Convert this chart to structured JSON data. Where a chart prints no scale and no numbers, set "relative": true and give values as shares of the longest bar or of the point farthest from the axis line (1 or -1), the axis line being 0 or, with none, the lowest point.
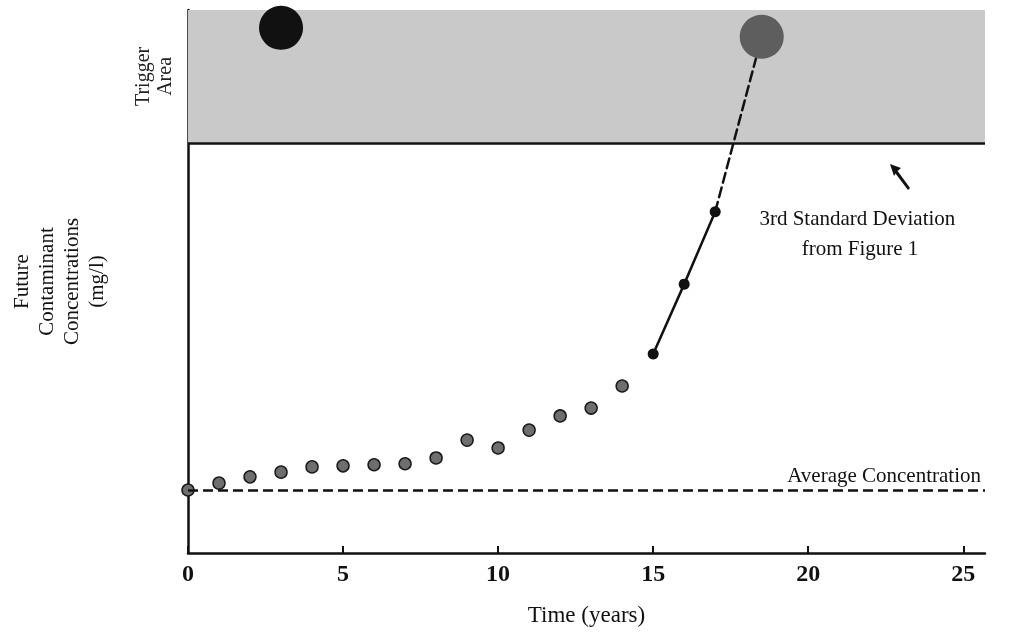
{
  "chart_data": {
    "type": "scatter",
    "xlabel": "Time (years)",
    "ylabel": "Future Contaminant Concentrations (mg/l)",
    "relative": true,
    "xlim": [
      0,
      25.7
    ],
    "xticks": [
      0,
      5,
      10,
      15,
      20,
      25
    ],
    "marker": "circle",
    "series": [
      {
        "color": "#6e6e6e",
        "x": [
          0,
          1,
          2,
          3,
          4,
          5,
          6,
          7,
          8,
          9,
          10,
          11,
          12,
          13,
          14
        ],
        "values": [
          0.12,
          0.133,
          0.145,
          0.154,
          0.164,
          0.166,
          0.168,
          0.17,
          0.181,
          0.215,
          0.2,
          0.234,
          0.261,
          0.276,
          0.318
        ]
      },
      {
        "type": "line",
        "color": "#111111",
        "x": [
          15,
          16,
          17
        ],
        "values": [
          0.379,
          0.512,
          0.65
        ],
        "line_style": "solid"
      },
      {
        "type": "line",
        "color": "#111111",
        "x": [
          17,
          18.5
        ],
        "values": [
          0.65,
          0.983
        ],
        "line_style": "dashed",
        "marker": "none"
      },
      {
        "type": "bubble",
        "x": [
          3,
          18.5
        ],
        "values": [
          1.0,
          0.983
        ],
        "sizes": [
          1,
          1
        ],
        "colors": [
          "#111111",
          "#5e5e5e"
        ]
      }
    ],
    "ref_lines": [
      {
        "axis": "y",
        "value": 0.12,
        "label": "Average Concentration",
        "line_style": "dashed",
        "color": "#111111"
      },
      {
        "axis": "y",
        "value": 0.781,
        "label": "3rd Standard Deviation from Figure 1",
        "line_style": "solid",
        "color": "#111111"
      }
    ],
    "bands": [
      {
        "axis": "y",
        "from": 0.781,
        "to": 1.034,
        "label": "Trigger Area",
        "color": "#c9c9c9"
      }
    ]
  }
}
